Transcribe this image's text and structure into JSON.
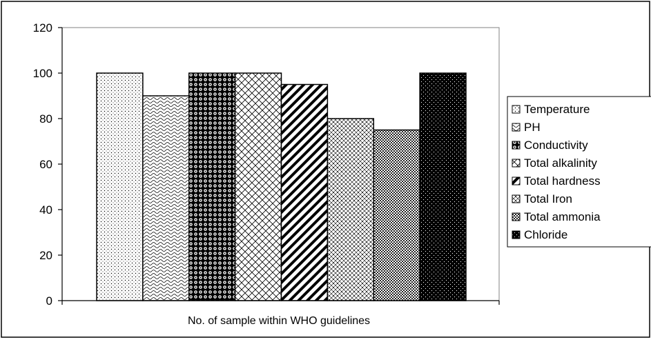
{
  "chart_data": {
    "type": "bar",
    "categories": [
      "No. of sample within WHO guidelines"
    ],
    "series": [
      {
        "name": "Temperature",
        "values": [
          100
        ]
      },
      {
        "name": "PH",
        "values": [
          90
        ]
      },
      {
        "name": "Conductivity",
        "values": [
          100
        ]
      },
      {
        "name": "Total alkalinity",
        "values": [
          100
        ]
      },
      {
        "name": "Total hardness",
        "values": [
          95
        ]
      },
      {
        "name": "Total Iron",
        "values": [
          80
        ]
      },
      {
        "name": "Total ammonia",
        "values": [
          75
        ]
      },
      {
        "name": "Chloride",
        "values": [
          100
        ]
      }
    ],
    "title": "",
    "xlabel": "No. of sample within WHO guidelines",
    "ylabel": "",
    "ylim": [
      0,
      120
    ],
    "yticks": [
      0,
      20,
      40,
      60,
      80,
      100,
      120
    ],
    "grid": false,
    "legend_position": "right"
  }
}
